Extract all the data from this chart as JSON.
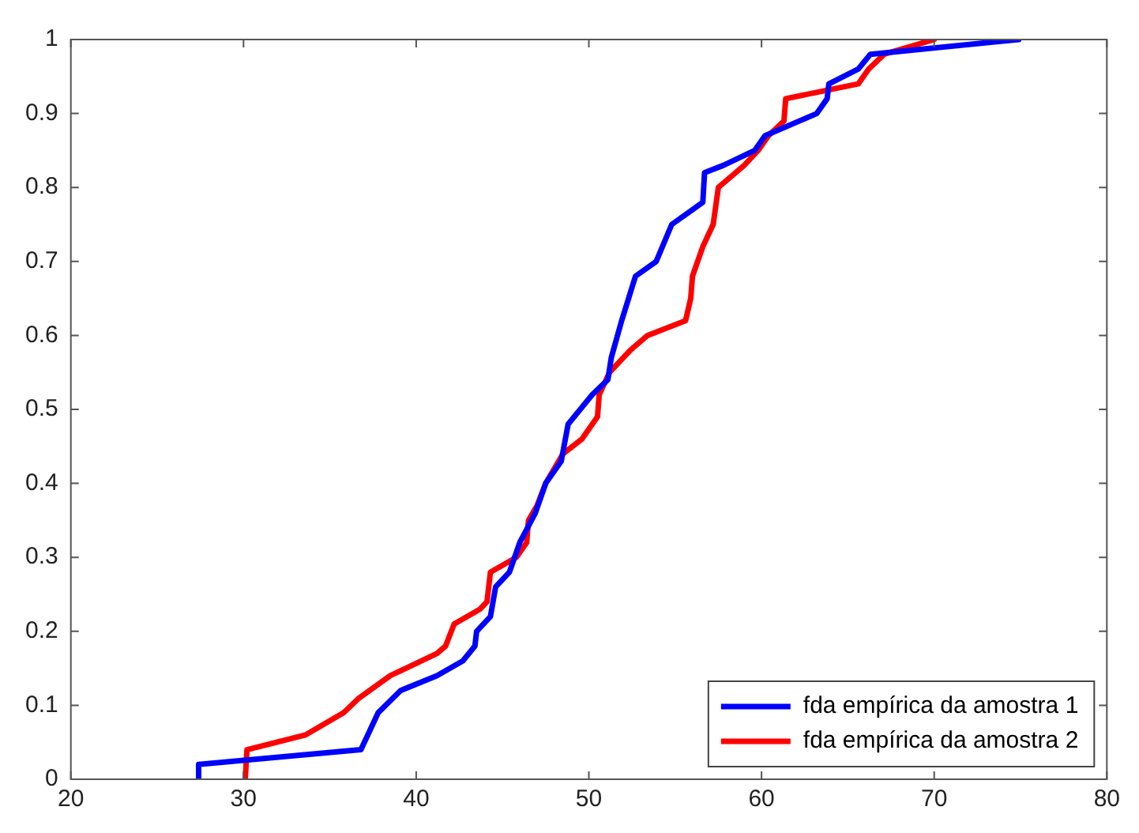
{
  "chart_data": {
    "type": "line",
    "xlim": [
      20,
      80
    ],
    "ylim": [
      0,
      1
    ],
    "xticks": [
      20,
      30,
      40,
      50,
      60,
      70,
      80
    ],
    "yticks": [
      0,
      0.1,
      0.2,
      0.3,
      0.4,
      0.5,
      0.6,
      0.7,
      0.8,
      0.9,
      1
    ],
    "grid": false,
    "legend": "bottom right",
    "line_style": "solid",
    "marker": "none",
    "series": [
      {
        "name": "fda empírica da amostra 1",
        "color": "#0000ff",
        "x": [
          27.4,
          27.4,
          36.8,
          37.8,
          39.1,
          41.2,
          42.7,
          43.4,
          43.5,
          44.3,
          44.6,
          45.4,
          46,
          46.9,
          47.5,
          48.4,
          48.8,
          50.2,
          51.1,
          51.3,
          51.9,
          52.7,
          53.9,
          54.8,
          56,
          56.6,
          56.7,
          57.8,
          59.6,
          60.2,
          63.2,
          63.8,
          63.9,
          65.6,
          66.3,
          74.9
        ],
        "values": [
          0,
          0.02,
          0.04,
          0.09,
          0.12,
          0.14,
          0.16,
          0.18,
          0.2,
          0.22,
          0.26,
          0.28,
          0.32,
          0.36,
          0.4,
          0.43,
          0.48,
          0.52,
          0.54,
          0.57,
          0.62,
          0.68,
          0.7,
          0.75,
          0.77,
          0.78,
          0.82,
          0.83,
          0.85,
          0.87,
          0.9,
          0.92,
          0.94,
          0.96,
          0.98,
          1
        ]
      },
      {
        "name": "fda empírica da amostra 2",
        "color": "#ff0000",
        "x": [
          30.1,
          30.2,
          33.6,
          35.8,
          36.7,
          38.5,
          41.2,
          41.7,
          42.2,
          43.7,
          44.1,
          44.3,
          45.8,
          46.4,
          46.5,
          47,
          47.5,
          48.5,
          49.6,
          50.5,
          50.6,
          51.2,
          52.4,
          53.4,
          55.6,
          55.9,
          56,
          56.6,
          57.2,
          57.5,
          59,
          59.8,
          60.4,
          61.3,
          61.4,
          65.6,
          66.2,
          67.1,
          70
        ],
        "values": [
          0,
          0.04,
          0.06,
          0.09,
          0.11,
          0.14,
          0.17,
          0.18,
          0.21,
          0.23,
          0.24,
          0.28,
          0.3,
          0.32,
          0.35,
          0.37,
          0.4,
          0.44,
          0.46,
          0.49,
          0.52,
          0.55,
          0.58,
          0.6,
          0.62,
          0.65,
          0.68,
          0.72,
          0.75,
          0.8,
          0.83,
          0.85,
          0.87,
          0.89,
          0.92,
          0.94,
          0.96,
          0.98,
          1
        ]
      }
    ]
  }
}
